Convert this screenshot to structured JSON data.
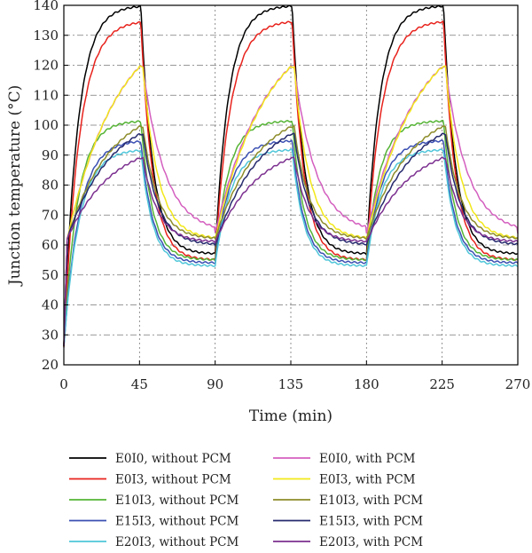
{
  "chart_data": {
    "type": "line",
    "xlabel": "Time (min)",
    "ylabel": "Junction temperature (°C)",
    "xlim": [
      0,
      270
    ],
    "ylim": [
      20,
      140
    ],
    "xticks": [
      0,
      45,
      90,
      135,
      180,
      225,
      270
    ],
    "yticks": [
      20,
      30,
      40,
      50,
      60,
      70,
      80,
      90,
      100,
      110,
      120,
      130,
      140
    ],
    "grid": true,
    "legend_position": "bottom",
    "cycle_period_min": 90,
    "heating_duration_min": 45,
    "series": [
      {
        "name": "E0I0, without PCM",
        "color": "#000000",
        "pcm": false,
        "peak": 140,
        "trough": 57,
        "tau_heat": 8,
        "tau_cool": 7
      },
      {
        "name": "E0I3, without PCM",
        "color": "#e8221c",
        "pcm": false,
        "peak": 135,
        "trough": 55,
        "tau_heat": 9,
        "tau_cool": 7
      },
      {
        "name": "E10I3, without PCM",
        "color": "#55b435",
        "pcm": false,
        "peak": 101.5,
        "trough": 55,
        "tau_heat": 8,
        "tau_cool": 7
      },
      {
        "name": "E15I3, without PCM",
        "color": "#3a4fb2",
        "pcm": false,
        "peak": 95,
        "trough": 54,
        "tau_heat": 9,
        "tau_cool": 7
      },
      {
        "name": "E20I3, without PCM",
        "color": "#4fc6d9",
        "pcm": false,
        "peak": 92,
        "trough": 53,
        "tau_heat": 9,
        "tau_cool": 7
      },
      {
        "name": "E0I0, with PCM",
        "color": "#d45fbf",
        "pcm": true,
        "peak": 119.5,
        "trough": 64,
        "tau_heat": 30,
        "tau_cool": 13
      },
      {
        "name": "E0I3, with PCM",
        "color": "#f2e81a",
        "pcm": true,
        "peak": 119.5,
        "trough": 62,
        "tau_heat": 30,
        "tau_cool": 9
      },
      {
        "name": "E10I3, with PCM",
        "color": "#8d8c2a",
        "pcm": true,
        "peak": 99.5,
        "trough": 62,
        "tau_heat": 25,
        "tau_cool": 9
      },
      {
        "name": "E15I3, with PCM",
        "color": "#262a6e",
        "pcm": true,
        "peak": 97,
        "trough": 60,
        "tau_heat": 26,
        "tau_cool": 9
      },
      {
        "name": "E20I3, with PCM",
        "color": "#7b2f8f",
        "pcm": true,
        "peak": 89,
        "trough": 61,
        "tau_heat": 26,
        "tau_cool": 9
      }
    ]
  }
}
